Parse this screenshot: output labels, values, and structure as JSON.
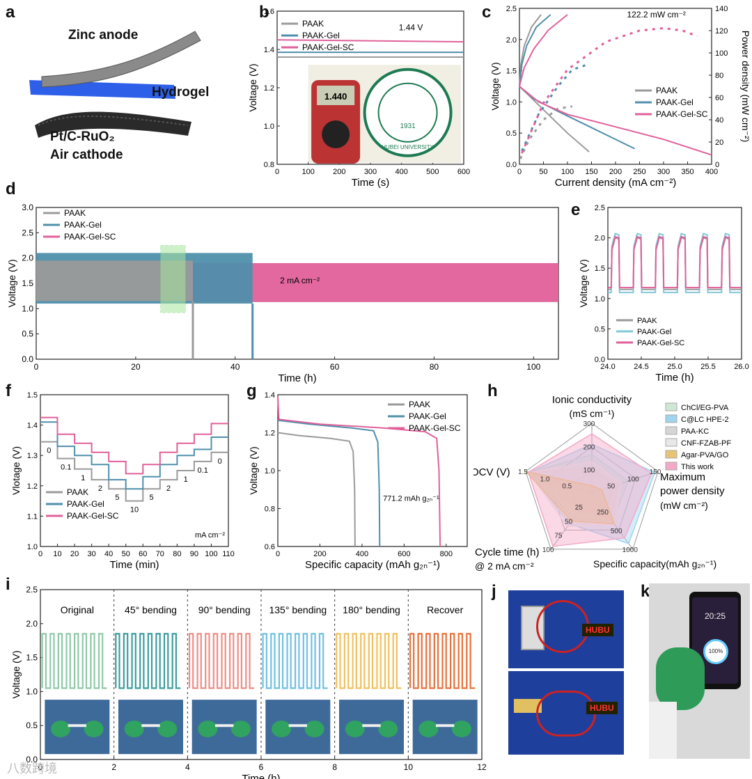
{
  "panel_labels": {
    "a": "a",
    "b": "b",
    "c": "c",
    "d": "d",
    "e": "e",
    "f": "f",
    "g": "g",
    "h": "h",
    "i": "i",
    "j": "j",
    "k": "k"
  },
  "panel_a": {
    "anode": "Zinc anode",
    "hydrogel": "Hydrogel",
    "cathode_line1": "Pt/C-RuO₂",
    "cathode_line2": "Air cathode"
  },
  "panel_j": {
    "led_text": "HUBU"
  },
  "panel_k": {
    "time": "20:25",
    "battery": "100%"
  },
  "watermark": "八数跨境",
  "colors": {
    "PAAK": "#9a9a9a",
    "PAAK-Gel": "#4f8fab",
    "PAAK-Gel-SC": "#e0609a"
  },
  "chart_data": [
    {
      "id": "b",
      "type": "line",
      "xlabel": "Time (s)",
      "ylabel": "Voltage (V)",
      "xlim": [
        0,
        600
      ],
      "ylim": [
        0.8,
        1.6
      ],
      "xticks": [
        0,
        100,
        200,
        300,
        400,
        500,
        600
      ],
      "yticks": [
        0.8,
        1.0,
        1.2,
        1.4,
        1.6
      ],
      "series": [
        {
          "name": "PAAK",
          "values": [
            1.36,
            1.36
          ]
        },
        {
          "name": "PAAK-Gel",
          "values": [
            1.385,
            1.385
          ]
        },
        {
          "name": "PAAK-Gel-SC",
          "values": [
            1.45,
            1.44
          ]
        }
      ],
      "x": [
        0,
        600
      ],
      "annotations": [
        "1.44 V"
      ],
      "photo_text": {
        "meter": "1.440",
        "seal_year": "1931",
        "seal_text": "HUBEI UNIVERSITY"
      }
    },
    {
      "id": "c",
      "type": "line",
      "xlabel": "Current density (mA cm⁻²)",
      "ylabel": "Voltage (V)",
      "y2label": "Power density (mW cm⁻²)",
      "xlim": [
        0,
        400
      ],
      "ylim": [
        0,
        2.5
      ],
      "y2lim": [
        0,
        140
      ],
      "xticks": [
        0,
        50,
        100,
        150,
        200,
        250,
        300,
        350,
        400
      ],
      "yticks": [
        0,
        0.5,
        1.0,
        1.5,
        2.0,
        2.5
      ],
      "y2ticks": [
        0,
        20,
        40,
        60,
        80,
        100,
        120,
        140
      ],
      "annotations": [
        "122.2 mW cm⁻²"
      ],
      "series": [
        {
          "name": "PAAK",
          "discharge": [
            [
              0,
              1.25
            ],
            [
              20,
              1.1
            ],
            [
              60,
              0.8
            ],
            [
              100,
              0.5
            ],
            [
              145,
              0.2
            ]
          ],
          "charge": [
            [
              0,
              1.25
            ],
            [
              3,
              1.6
            ],
            [
              10,
              1.9
            ],
            [
              25,
              2.2
            ],
            [
              45,
              2.4
            ]
          ],
          "power": [
            [
              2,
              5
            ],
            [
              20,
              22
            ],
            [
              50,
              40
            ],
            [
              80,
              50
            ],
            [
              110,
              52
            ]
          ]
        },
        {
          "name": "PAAK-Gel",
          "discharge": [
            [
              0,
              1.25
            ],
            [
              30,
              1.05
            ],
            [
              80,
              0.85
            ],
            [
              160,
              0.55
            ],
            [
              240,
              0.25
            ]
          ],
          "charge": [
            [
              0,
              1.25
            ],
            [
              5,
              1.6
            ],
            [
              15,
              1.9
            ],
            [
              35,
              2.2
            ],
            [
              65,
              2.4
            ]
          ],
          "power": [
            [
              5,
              12
            ],
            [
              40,
              45
            ],
            [
              80,
              70
            ],
            [
              110,
              85
            ],
            [
              145,
              90
            ]
          ]
        },
        {
          "name": "PAAK-Gel-SC",
          "discharge": [
            [
              0,
              1.25
            ],
            [
              40,
              1.0
            ],
            [
              100,
              0.8
            ],
            [
              200,
              0.6
            ],
            [
              300,
              0.4
            ],
            [
              400,
              0.15
            ]
          ],
          "charge": [
            [
              0,
              1.25
            ],
            [
              10,
              1.55
            ],
            [
              30,
              1.85
            ],
            [
              60,
              2.15
            ],
            [
              100,
              2.4
            ]
          ],
          "power": [
            [
              5,
              10
            ],
            [
              50,
              55
            ],
            [
              100,
              85
            ],
            [
              180,
              110
            ],
            [
              250,
              120
            ],
            [
              300,
              122.2
            ],
            [
              340,
              120
            ],
            [
              370,
              115
            ]
          ]
        }
      ]
    },
    {
      "id": "d",
      "type": "line",
      "xlabel": "Time (h)",
      "ylabel": "Voltage (V)",
      "xlim": [
        0,
        105
      ],
      "ylim": [
        0,
        3.0
      ],
      "xticks": [
        0,
        20,
        40,
        60,
        80,
        100
      ],
      "yticks": [
        0,
        0.5,
        1.0,
        1.5,
        2.0,
        2.5,
        3.0
      ],
      "annotations": [
        "2 mA cm⁻²"
      ],
      "series": [
        {
          "name": "PAAK",
          "charge_v": 1.95,
          "discharge_v": 1.15,
          "end_h": 31.5
        },
        {
          "name": "PAAK-Gel",
          "charge_v": 2.1,
          "discharge_v": 1.1,
          "end_h": 43.5
        },
        {
          "name": "PAAK-Gel-SC",
          "charge_v": 1.9,
          "discharge_v": 1.13,
          "end_h": 105
        }
      ]
    },
    {
      "id": "e",
      "type": "line",
      "xlabel": "Time (h)",
      "ylabel": "Voltage (V)",
      "xlim": [
        24.0,
        26.0
      ],
      "ylim": [
        0,
        2.5
      ],
      "xticks": [
        24.0,
        24.5,
        25.0,
        25.5,
        26.0
      ],
      "yticks": [
        0,
        0.5,
        1.0,
        1.5,
        2.0,
        2.5
      ],
      "series": [
        {
          "name": "PAAK",
          "high": 2.0,
          "low": 1.15
        },
        {
          "name": "PAAK-Gel",
          "high": 2.07,
          "low": 1.1
        },
        {
          "name": "PAAK-Gel-SC",
          "high": 2.02,
          "low": 1.18
        }
      ],
      "period_h": 0.33
    },
    {
      "id": "f",
      "type": "line",
      "xlabel": "Time (min)",
      "ylabel": "Vlotage (V)",
      "xlim": [
        0,
        110
      ],
      "ylim": [
        1.0,
        1.5
      ],
      "xticks": [
        0,
        10,
        20,
        30,
        40,
        50,
        60,
        70,
        80,
        90,
        100,
        110
      ],
      "yticks": [
        1.0,
        1.1,
        1.2,
        1.3,
        1.4,
        1.5
      ],
      "step_labels": [
        "0",
        "0.1",
        "1",
        "2",
        "5",
        "10",
        "5",
        "2",
        "1",
        "0.1",
        "0"
      ],
      "unit_label": "mA cm⁻²",
      "series": [
        {
          "name": "PAAK",
          "values": [
            1.345,
            1.29,
            1.255,
            1.22,
            1.19,
            1.15,
            1.19,
            1.22,
            1.25,
            1.28,
            1.31
          ]
        },
        {
          "name": "PAAK-Gel",
          "values": [
            1.41,
            1.33,
            1.3,
            1.27,
            1.22,
            1.19,
            1.23,
            1.27,
            1.3,
            1.32,
            1.36
          ]
        },
        {
          "name": "PAAK-Gel-SC",
          "values": [
            1.425,
            1.37,
            1.34,
            1.31,
            1.28,
            1.24,
            1.27,
            1.31,
            1.34,
            1.37,
            1.405
          ]
        }
      ]
    },
    {
      "id": "g",
      "type": "line",
      "xlabel": "Specific capacity (mAh g₂ₙ⁻¹)",
      "ylabel": "Voltage (V)",
      "xlim": [
        0,
        900
      ],
      "ylim": [
        0.6,
        1.4
      ],
      "xticks": [
        0,
        200,
        400,
        600,
        800
      ],
      "yticks": [
        0.6,
        0.8,
        1.0,
        1.2,
        1.4
      ],
      "annotations": [
        "771.2 mAh g₂ₙ⁻¹"
      ],
      "series": [
        {
          "name": "PAAK",
          "points": [
            [
              0,
              1.2
            ],
            [
              100,
              1.185
            ],
            [
              250,
              1.17
            ],
            [
              340,
              1.155
            ],
            [
              358,
              1.1
            ],
            [
              365,
              0.9
            ],
            [
              367,
              0.6
            ]
          ]
        },
        {
          "name": "PAAK-Gel",
          "points": [
            [
              0,
              1.265
            ],
            [
              150,
              1.245
            ],
            [
              350,
              1.225
            ],
            [
              455,
              1.21
            ],
            [
              475,
              1.15
            ],
            [
              482,
              0.9
            ],
            [
              484,
              0.6
            ]
          ]
        },
        {
          "name": "PAAK-Gel-SC",
          "points": [
            [
              0,
              1.39
            ],
            [
              5,
              1.27
            ],
            [
              200,
              1.245
            ],
            [
              500,
              1.225
            ],
            [
              700,
              1.205
            ],
            [
              755,
              1.17
            ],
            [
              766,
              1.0
            ],
            [
              771.2,
              0.6
            ]
          ]
        }
      ]
    },
    {
      "id": "h",
      "type": "radar",
      "axes": [
        {
          "name": "Ionic conductivity",
          "unit": "(mS cm⁻¹)",
          "max": 300,
          "ticks": [
            "300",
            "200",
            "100"
          ]
        },
        {
          "name": "Maximum",
          "name2": "power density",
          "unit": "(mW cm⁻²)",
          "max": 150,
          "ticks": [
            "150",
            "100",
            "50"
          ]
        },
        {
          "name": "Specific capacity(mAh g₂ₙ⁻¹)",
          "max": 1000,
          "ticks": [
            "1000",
            "500",
            "250"
          ]
        },
        {
          "name": "Cycle time (h)",
          "name2": "@ 2 mA cm⁻²",
          "max": 100,
          "ticks": [
            "100",
            "75",
            "50",
            "25"
          ]
        },
        {
          "name": "OCV (V)",
          "max": 1.5,
          "ticks": [
            "1.5",
            "1.0",
            "0.5"
          ]
        }
      ],
      "legend": [
        "ChCl/EG-PVA",
        "C@LC HPE-2",
        "PAA-KC",
        "CNF-FZAB-PF",
        "Agar-PVA/GO",
        "This work"
      ],
      "series": [
        {
          "name": "ChCl/EG-PVA",
          "values": [
            0.55,
            0.55,
            0.5,
            0.45,
            0.95
          ]
        },
        {
          "name": "C@LC HPE-2",
          "values": [
            0.7,
            0.95,
            0.9,
            0.55,
            0.95
          ]
        },
        {
          "name": "PAA-KC",
          "values": [
            0.35,
            0.4,
            0.45,
            0.3,
            0.95
          ]
        },
        {
          "name": "CNF-FZAB-PF",
          "values": [
            0.45,
            0.45,
            0.55,
            0.6,
            0.95
          ]
        },
        {
          "name": "Agar-PVA/GO",
          "values": [
            0.1,
            0.15,
            0.55,
            0.5,
            1.0
          ]
        },
        {
          "name": "This work",
          "values": [
            0.85,
            0.9,
            0.8,
            0.95,
            0.96
          ]
        }
      ]
    },
    {
      "id": "i",
      "type": "line",
      "xlabel": "Time (h)",
      "ylabel": "Voltage (V)",
      "xlim": [
        0,
        12
      ],
      "ylim": [
        0,
        2.5
      ],
      "xticks": [
        0,
        2,
        4,
        6,
        8,
        10,
        12
      ],
      "yticks": [
        0,
        0.5,
        1.0,
        1.5,
        2.0,
        2.5
      ],
      "segments": [
        {
          "label": "Original",
          "color": "#8fc9a8"
        },
        {
          "label": "45° bending",
          "color": "#3e9c9c"
        },
        {
          "label": "90° bending",
          "color": "#ee8c86"
        },
        {
          "label": "135° bending",
          "color": "#6fc0e0"
        },
        {
          "label": "180° bending",
          "color": "#f2c05e"
        },
        {
          "label": "Recover",
          "color": "#e8703a"
        }
      ],
      "high": 1.85,
      "low": 1.05
    }
  ]
}
